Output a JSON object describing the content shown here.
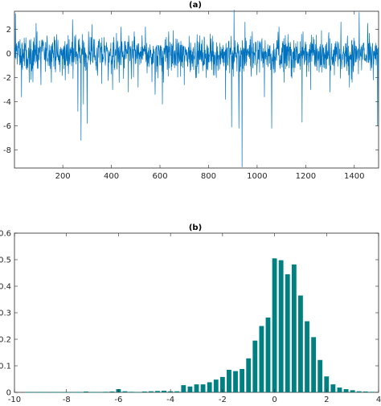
{
  "chart_data": [
    {
      "type": "line",
      "title": "(a)",
      "xlabel": "",
      "ylabel": "",
      "xlim": [
        1,
        1500
      ],
      "ylim": [
        -9.5,
        3.5
      ],
      "xticks": [
        200,
        400,
        600,
        800,
        1000,
        1200,
        1400
      ],
      "yticks": [
        -8,
        -6,
        -4,
        -2,
        0,
        2
      ],
      "color": "#0072BD",
      "grid": false,
      "n_points": 1500,
      "baseline_range": [
        -1.8,
        1.8
      ],
      "highlights": [
        {
          "x": 5,
          "y": 3.3
        },
        {
          "x": 30,
          "y": -3.6
        },
        {
          "x": 90,
          "y": 2.5
        },
        {
          "x": 110,
          "y": -2.6
        },
        {
          "x": 210,
          "y": -2.2
        },
        {
          "x": 240,
          "y": 2.8
        },
        {
          "x": 262,
          "y": -4.8
        },
        {
          "x": 275,
          "y": -7.2
        },
        {
          "x": 285,
          "y": -4.2
        },
        {
          "x": 300,
          "y": -5.8
        },
        {
          "x": 320,
          "y": 2.4
        },
        {
          "x": 360,
          "y": -2.5
        },
        {
          "x": 405,
          "y": -3.0
        },
        {
          "x": 440,
          "y": 2.2
        },
        {
          "x": 470,
          "y": -3.2
        },
        {
          "x": 510,
          "y": -2.8
        },
        {
          "x": 540,
          "y": 2.2
        },
        {
          "x": 580,
          "y": -3.4
        },
        {
          "x": 610,
          "y": -4.2
        },
        {
          "x": 655,
          "y": 1.9
        },
        {
          "x": 700,
          "y": -2.6
        },
        {
          "x": 750,
          "y": -2.0
        },
        {
          "x": 790,
          "y": -2.0
        },
        {
          "x": 820,
          "y": -1.8
        },
        {
          "x": 870,
          "y": -3.8
        },
        {
          "x": 895,
          "y": -6.1
        },
        {
          "x": 905,
          "y": 3.6
        },
        {
          "x": 925,
          "y": -6.2
        },
        {
          "x": 938,
          "y": -9.4
        },
        {
          "x": 950,
          "y": 2.6
        },
        {
          "x": 980,
          "y": 1.8
        },
        {
          "x": 1030,
          "y": -3.6
        },
        {
          "x": 1060,
          "y": -6.2
        },
        {
          "x": 1090,
          "y": 2.2
        },
        {
          "x": 1140,
          "y": -1.9
        },
        {
          "x": 1185,
          "y": -5.7
        },
        {
          "x": 1220,
          "y": -3.0
        },
        {
          "x": 1265,
          "y": 1.9
        },
        {
          "x": 1300,
          "y": -3.2
        },
        {
          "x": 1345,
          "y": 2.6
        },
        {
          "x": 1380,
          "y": -2.8
        },
        {
          "x": 1420,
          "y": 3.4
        },
        {
          "x": 1455,
          "y": 2.5
        },
        {
          "x": 1478,
          "y": -2.2
        },
        {
          "x": 1496,
          "y": -6.0
        }
      ]
    },
    {
      "type": "bar",
      "title": "(b)",
      "xlabel": "",
      "ylabel": "",
      "xlim": [
        -10,
        4
      ],
      "ylim": [
        0,
        0.6
      ],
      "xticks": [
        -10,
        -8,
        -6,
        -4,
        -2,
        0,
        2,
        4
      ],
      "yticks": [
        0,
        0.1,
        0.2,
        0.3,
        0.4,
        0.5,
        0.6
      ],
      "ytick_labels": [
        "0",
        "0.1",
        "0.2",
        "0.3",
        "0.4",
        "0.5",
        "0.6"
      ],
      "color": "#008080",
      "grid": false,
      "bin_width": 0.25,
      "bins": [
        {
          "x": -9.5,
          "y": 0.001
        },
        {
          "x": -9.25,
          "y": 0.001
        },
        {
          "x": -9.0,
          "y": 0.001
        },
        {
          "x": -8.75,
          "y": 0.001
        },
        {
          "x": -8.5,
          "y": 0.001
        },
        {
          "x": -8.25,
          "y": 0.001
        },
        {
          "x": -8.0,
          "y": 0.001
        },
        {
          "x": -7.75,
          "y": 0.001
        },
        {
          "x": -7.5,
          "y": 0.001
        },
        {
          "x": -7.25,
          "y": 0.003
        },
        {
          "x": -7.0,
          "y": 0.001
        },
        {
          "x": -6.75,
          "y": 0.001
        },
        {
          "x": -6.5,
          "y": 0.002
        },
        {
          "x": -6.25,
          "y": 0.003
        },
        {
          "x": -6.0,
          "y": 0.012
        },
        {
          "x": -5.75,
          "y": 0.004
        },
        {
          "x": -5.5,
          "y": 0.002
        },
        {
          "x": -5.25,
          "y": 0.001
        },
        {
          "x": -5.0,
          "y": 0.003
        },
        {
          "x": -4.75,
          "y": 0.004
        },
        {
          "x": -4.5,
          "y": 0.005
        },
        {
          "x": -4.25,
          "y": 0.006
        },
        {
          "x": -4.0,
          "y": 0.004
        },
        {
          "x": -3.75,
          "y": 0.004
        },
        {
          "x": -3.5,
          "y": 0.027
        },
        {
          "x": -3.25,
          "y": 0.022
        },
        {
          "x": -3.0,
          "y": 0.03
        },
        {
          "x": -2.75,
          "y": 0.03
        },
        {
          "x": -2.5,
          "y": 0.038
        },
        {
          "x": -2.25,
          "y": 0.048
        },
        {
          "x": -2.0,
          "y": 0.058
        },
        {
          "x": -1.75,
          "y": 0.085
        },
        {
          "x": -1.5,
          "y": 0.08
        },
        {
          "x": -1.25,
          "y": 0.088
        },
        {
          "x": -1.0,
          "y": 0.128
        },
        {
          "x": -0.75,
          "y": 0.195
        },
        {
          "x": -0.5,
          "y": 0.25
        },
        {
          "x": -0.25,
          "y": 0.282
        },
        {
          "x": 0.0,
          "y": 0.505
        },
        {
          "x": 0.25,
          "y": 0.498
        },
        {
          "x": 0.5,
          "y": 0.445
        },
        {
          "x": 0.75,
          "y": 0.482
        },
        {
          "x": 1.0,
          "y": 0.365
        },
        {
          "x": 1.25,
          "y": 0.268
        },
        {
          "x": 1.5,
          "y": 0.208
        },
        {
          "x": 1.75,
          "y": 0.122
        },
        {
          "x": 2.0,
          "y": 0.06
        },
        {
          "x": 2.25,
          "y": 0.03
        },
        {
          "x": 2.5,
          "y": 0.018
        },
        {
          "x": 2.75,
          "y": 0.012
        },
        {
          "x": 3.0,
          "y": 0.008
        },
        {
          "x": 3.25,
          "y": 0.004
        },
        {
          "x": 3.5,
          "y": 0.003
        },
        {
          "x": 3.75,
          "y": 0.002
        }
      ]
    }
  ]
}
